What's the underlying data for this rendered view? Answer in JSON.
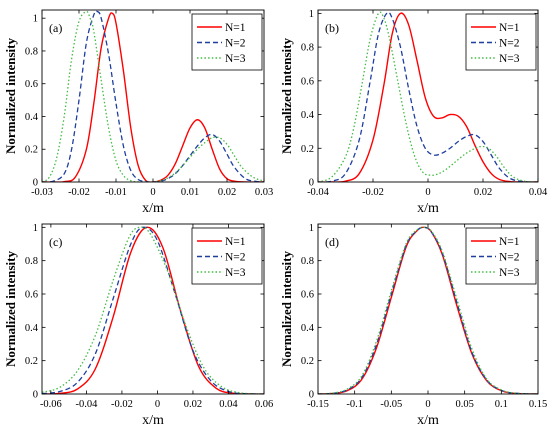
{
  "chart_data": [
    {
      "type": "line",
      "panel_label": "(a)",
      "xlabel": "x/m",
      "ylabel": "Normalized intensity",
      "xlim": [
        -0.03,
        0.03
      ],
      "ylim": [
        0,
        1.05
      ],
      "xticks": [
        -0.03,
        -0.02,
        -0.01,
        0,
        0.01,
        0.02,
        0.03
      ],
      "xtick_labels": [
        "-0.03",
        "-0.02",
        "-0.01",
        "0",
        "0.01",
        "0.02",
        "0.03"
      ],
      "yticks": [
        0,
        0.2,
        0.4,
        0.6,
        0.8,
        1
      ],
      "ytick_labels": [
        "0",
        "0.2",
        "0.4",
        "0.6",
        "0.8",
        "1"
      ],
      "legend_position": "top-right",
      "series": [
        {
          "name": "N=1",
          "color": "#ff0000",
          "dash": "solid",
          "x": [
            -0.03,
            -0.027,
            -0.024,
            -0.021,
            -0.018,
            -0.016,
            -0.014,
            -0.012,
            -0.011,
            -0.01,
            -0.008,
            -0.006,
            -0.004,
            -0.002,
            0,
            0.002,
            0.004,
            0.006,
            0.008,
            0.01,
            0.012,
            0.014,
            0.016,
            0.018,
            0.02,
            0.022,
            0.025,
            0.028,
            0.03
          ],
          "y": [
            0,
            0,
            0.002,
            0.03,
            0.2,
            0.48,
            0.82,
            1.0,
            1.03,
            0.97,
            0.68,
            0.33,
            0.1,
            0.01,
            0,
            0.01,
            0.04,
            0.11,
            0.22,
            0.33,
            0.38,
            0.33,
            0.2,
            0.08,
            0.02,
            0.005,
            0,
            0,
            0
          ]
        },
        {
          "name": "N=2",
          "color": "#1f3fa0",
          "dash": "dashed",
          "x": [
            -0.03,
            -0.027,
            -0.024,
            -0.022,
            -0.02,
            -0.018,
            -0.016,
            -0.015,
            -0.014,
            -0.012,
            -0.01,
            -0.008,
            -0.006,
            -0.004,
            -0.002,
            0,
            0.002,
            0.004,
            0.006,
            0.008,
            0.01,
            0.012,
            0.014,
            0.016,
            0.018,
            0.02,
            0.022,
            0.025,
            0.028,
            0.03
          ],
          "y": [
            0,
            0.005,
            0.05,
            0.2,
            0.5,
            0.85,
            1.02,
            1.04,
            1.0,
            0.78,
            0.48,
            0.22,
            0.07,
            0.015,
            0.002,
            0,
            0.004,
            0.02,
            0.05,
            0.1,
            0.16,
            0.22,
            0.27,
            0.29,
            0.25,
            0.17,
            0.09,
            0.02,
            0.003,
            0
          ]
        },
        {
          "name": "N=3",
          "color": "#44bb44",
          "dash": "dotted",
          "x": [
            -0.03,
            -0.028,
            -0.026,
            -0.024,
            -0.022,
            -0.02,
            -0.018,
            -0.017,
            -0.016,
            -0.014,
            -0.012,
            -0.01,
            -0.008,
            -0.006,
            -0.004,
            -0.002,
            0,
            0.002,
            0.004,
            0.006,
            0.008,
            0.01,
            0.012,
            0.014,
            0.016,
            0.018,
            0.02,
            0.022,
            0.024,
            0.027,
            0.03
          ],
          "y": [
            0,
            0.03,
            0.15,
            0.4,
            0.75,
            0.98,
            1.04,
            1.0,
            0.92,
            0.62,
            0.33,
            0.13,
            0.04,
            0.008,
            0.001,
            0,
            0.001,
            0.008,
            0.025,
            0.055,
            0.1,
            0.15,
            0.2,
            0.24,
            0.27,
            0.27,
            0.23,
            0.16,
            0.09,
            0.03,
            0.005
          ]
        }
      ]
    },
    {
      "type": "line",
      "panel_label": "(b)",
      "xlabel": "x/m",
      "ylabel": "Normalized intensity",
      "xlim": [
        -0.04,
        0.04
      ],
      "ylim": [
        0,
        1.02
      ],
      "xticks": [
        -0.04,
        -0.02,
        0,
        0.02,
        0.04
      ],
      "xtick_labels": [
        "-0.04",
        "-0.02",
        "0",
        "0.02",
        "0.04"
      ],
      "yticks": [
        0,
        0.2,
        0.4,
        0.6,
        0.8,
        1
      ],
      "ytick_labels": [
        "0",
        "0.2",
        "0.4",
        "0.6",
        "0.8",
        "1"
      ],
      "legend_position": "top-right",
      "series": [
        {
          "name": "N=1",
          "color": "#ff0000",
          "dash": "solid",
          "x": [
            -0.04,
            -0.035,
            -0.03,
            -0.025,
            -0.02,
            -0.016,
            -0.013,
            -0.01,
            -0.007,
            -0.004,
            -0.001,
            0.002,
            0.005,
            0.008,
            0.011,
            0.014,
            0.017,
            0.02,
            0.023,
            0.026,
            0.03,
            0.035,
            0.04
          ],
          "y": [
            0,
            0,
            0.005,
            0.05,
            0.25,
            0.58,
            0.88,
            1.0,
            0.93,
            0.72,
            0.5,
            0.39,
            0.38,
            0.4,
            0.39,
            0.33,
            0.22,
            0.12,
            0.05,
            0.015,
            0.002,
            0,
            0
          ]
        },
        {
          "name": "N=2",
          "color": "#1f3fa0",
          "dash": "dashed",
          "x": [
            -0.04,
            -0.035,
            -0.03,
            -0.025,
            -0.021,
            -0.018,
            -0.015,
            -0.013,
            -0.01,
            -0.007,
            -0.004,
            -0.001,
            0.002,
            0.005,
            0.008,
            0.011,
            0.014,
            0.017,
            0.02,
            0.023,
            0.026,
            0.03,
            0.035,
            0.04
          ],
          "y": [
            0,
            0.005,
            0.05,
            0.25,
            0.6,
            0.88,
            1.0,
            0.97,
            0.8,
            0.55,
            0.33,
            0.2,
            0.16,
            0.17,
            0.2,
            0.24,
            0.27,
            0.28,
            0.24,
            0.16,
            0.08,
            0.02,
            0.002,
            0
          ]
        },
        {
          "name": "N=3",
          "color": "#44bb44",
          "dash": "dotted",
          "x": [
            -0.04,
            -0.035,
            -0.03,
            -0.027,
            -0.024,
            -0.021,
            -0.018,
            -0.016,
            -0.014,
            -0.011,
            -0.008,
            -0.005,
            -0.002,
            0.001,
            0.004,
            0.007,
            0.01,
            0.013,
            0.016,
            0.019,
            0.022,
            0.025,
            0.028,
            0.031,
            0.035,
            0.04
          ],
          "y": [
            0,
            0.03,
            0.15,
            0.32,
            0.58,
            0.85,
            1.0,
            0.97,
            0.85,
            0.6,
            0.35,
            0.16,
            0.06,
            0.04,
            0.05,
            0.08,
            0.12,
            0.16,
            0.19,
            0.21,
            0.2,
            0.15,
            0.08,
            0.03,
            0.005,
            0
          ]
        }
      ]
    },
    {
      "type": "line",
      "panel_label": "(c)",
      "xlabel": "x/m",
      "ylabel": "Normalized intensity",
      "xlim": [
        -0.065,
        0.06
      ],
      "ylim": [
        0,
        1.02
      ],
      "xticks": [
        -0.06,
        -0.04,
        -0.02,
        0,
        0.02,
        0.04,
        0.06
      ],
      "xtick_labels": [
        "-0.06",
        "-0.04",
        "-0.02",
        "0",
        "0.02",
        "0.04",
        "0.06"
      ],
      "yticks": [
        0,
        0.2,
        0.4,
        0.6,
        0.8,
        1
      ],
      "ytick_labels": [
        "0",
        "0.2",
        "0.4",
        "0.6",
        "0.8",
        "1"
      ],
      "legend_position": "top-right",
      "series": [
        {
          "name": "N=1",
          "color": "#ff0000",
          "dash": "solid",
          "x": [
            -0.065,
            -0.055,
            -0.045,
            -0.035,
            -0.025,
            -0.015,
            -0.006,
            0.003,
            0.013,
            0.023,
            0.033,
            0.043,
            0.053,
            0.06
          ],
          "y": [
            0,
            0.004,
            0.03,
            0.15,
            0.46,
            0.85,
            1.0,
            0.88,
            0.5,
            0.17,
            0.035,
            0.004,
            0,
            0
          ]
        },
        {
          "name": "N=2",
          "color": "#1f3fa0",
          "dash": "dashed",
          "x": [
            -0.065,
            -0.055,
            -0.045,
            -0.035,
            -0.025,
            -0.015,
            -0.008,
            0.0,
            0.01,
            0.02,
            0.03,
            0.04,
            0.05,
            0.06
          ],
          "y": [
            0.002,
            0.015,
            0.07,
            0.24,
            0.57,
            0.9,
            1.0,
            0.92,
            0.6,
            0.26,
            0.08,
            0.015,
            0.002,
            0
          ]
        },
        {
          "name": "N=3",
          "color": "#44bb44",
          "dash": "dotted",
          "x": [
            -0.065,
            -0.055,
            -0.045,
            -0.035,
            -0.025,
            -0.016,
            -0.01,
            -0.004,
            0.006,
            0.016,
            0.026,
            0.036,
            0.046,
            0.056,
            0.06
          ],
          "y": [
            0.01,
            0.04,
            0.14,
            0.35,
            0.68,
            0.94,
            1.0,
            0.96,
            0.73,
            0.41,
            0.16,
            0.045,
            0.008,
            0.001,
            0
          ]
        }
      ]
    },
    {
      "type": "line",
      "panel_label": "(d)",
      "xlabel": "x/m",
      "ylabel": "Normalized intensity",
      "xlim": [
        -0.15,
        0.15
      ],
      "ylim": [
        0,
        1.02
      ],
      "xticks": [
        -0.15,
        -0.1,
        -0.05,
        0,
        0.05,
        0.1,
        0.15
      ],
      "xtick_labels": [
        "-0.15",
        "-0.1",
        "-0.05",
        "0",
        "0.05",
        "0.1",
        "0.15"
      ],
      "yticks": [
        0,
        0.2,
        0.4,
        0.6,
        0.8,
        1
      ],
      "ytick_labels": [
        "0",
        "0.2",
        "0.4",
        "0.6",
        "0.8",
        "1"
      ],
      "legend_position": "top-right",
      "series": [
        {
          "name": "N=1",
          "color": "#ff0000",
          "dash": "solid",
          "x": [
            -0.15,
            -0.13,
            -0.11,
            -0.09,
            -0.07,
            -0.05,
            -0.03,
            -0.015,
            -0.005,
            0.005,
            0.02,
            0.04,
            0.06,
            0.08,
            0.1,
            0.12,
            0.15
          ],
          "y": [
            0,
            0.003,
            0.02,
            0.09,
            0.28,
            0.58,
            0.88,
            0.98,
            1.0,
            0.97,
            0.83,
            0.52,
            0.24,
            0.08,
            0.02,
            0.003,
            0
          ]
        },
        {
          "name": "N=2",
          "color": "#1f3fa0",
          "dash": "dashed",
          "x": [
            -0.15,
            -0.13,
            -0.11,
            -0.09,
            -0.07,
            -0.05,
            -0.03,
            -0.015,
            -0.005,
            0.005,
            0.02,
            0.04,
            0.06,
            0.08,
            0.1,
            0.12,
            0.15
          ],
          "y": [
            0,
            0.004,
            0.025,
            0.1,
            0.3,
            0.6,
            0.89,
            0.98,
            1.0,
            0.97,
            0.84,
            0.54,
            0.25,
            0.085,
            0.022,
            0.004,
            0
          ]
        },
        {
          "name": "N=3",
          "color": "#44bb44",
          "dash": "dotted",
          "x": [
            -0.15,
            -0.13,
            -0.11,
            -0.09,
            -0.07,
            -0.05,
            -0.03,
            -0.015,
            -0.005,
            0.005,
            0.02,
            0.04,
            0.06,
            0.08,
            0.1,
            0.12,
            0.15
          ],
          "y": [
            0.001,
            0.005,
            0.03,
            0.11,
            0.32,
            0.62,
            0.9,
            0.985,
            1.0,
            0.975,
            0.85,
            0.56,
            0.27,
            0.09,
            0.025,
            0.005,
            0
          ]
        }
      ]
    }
  ]
}
